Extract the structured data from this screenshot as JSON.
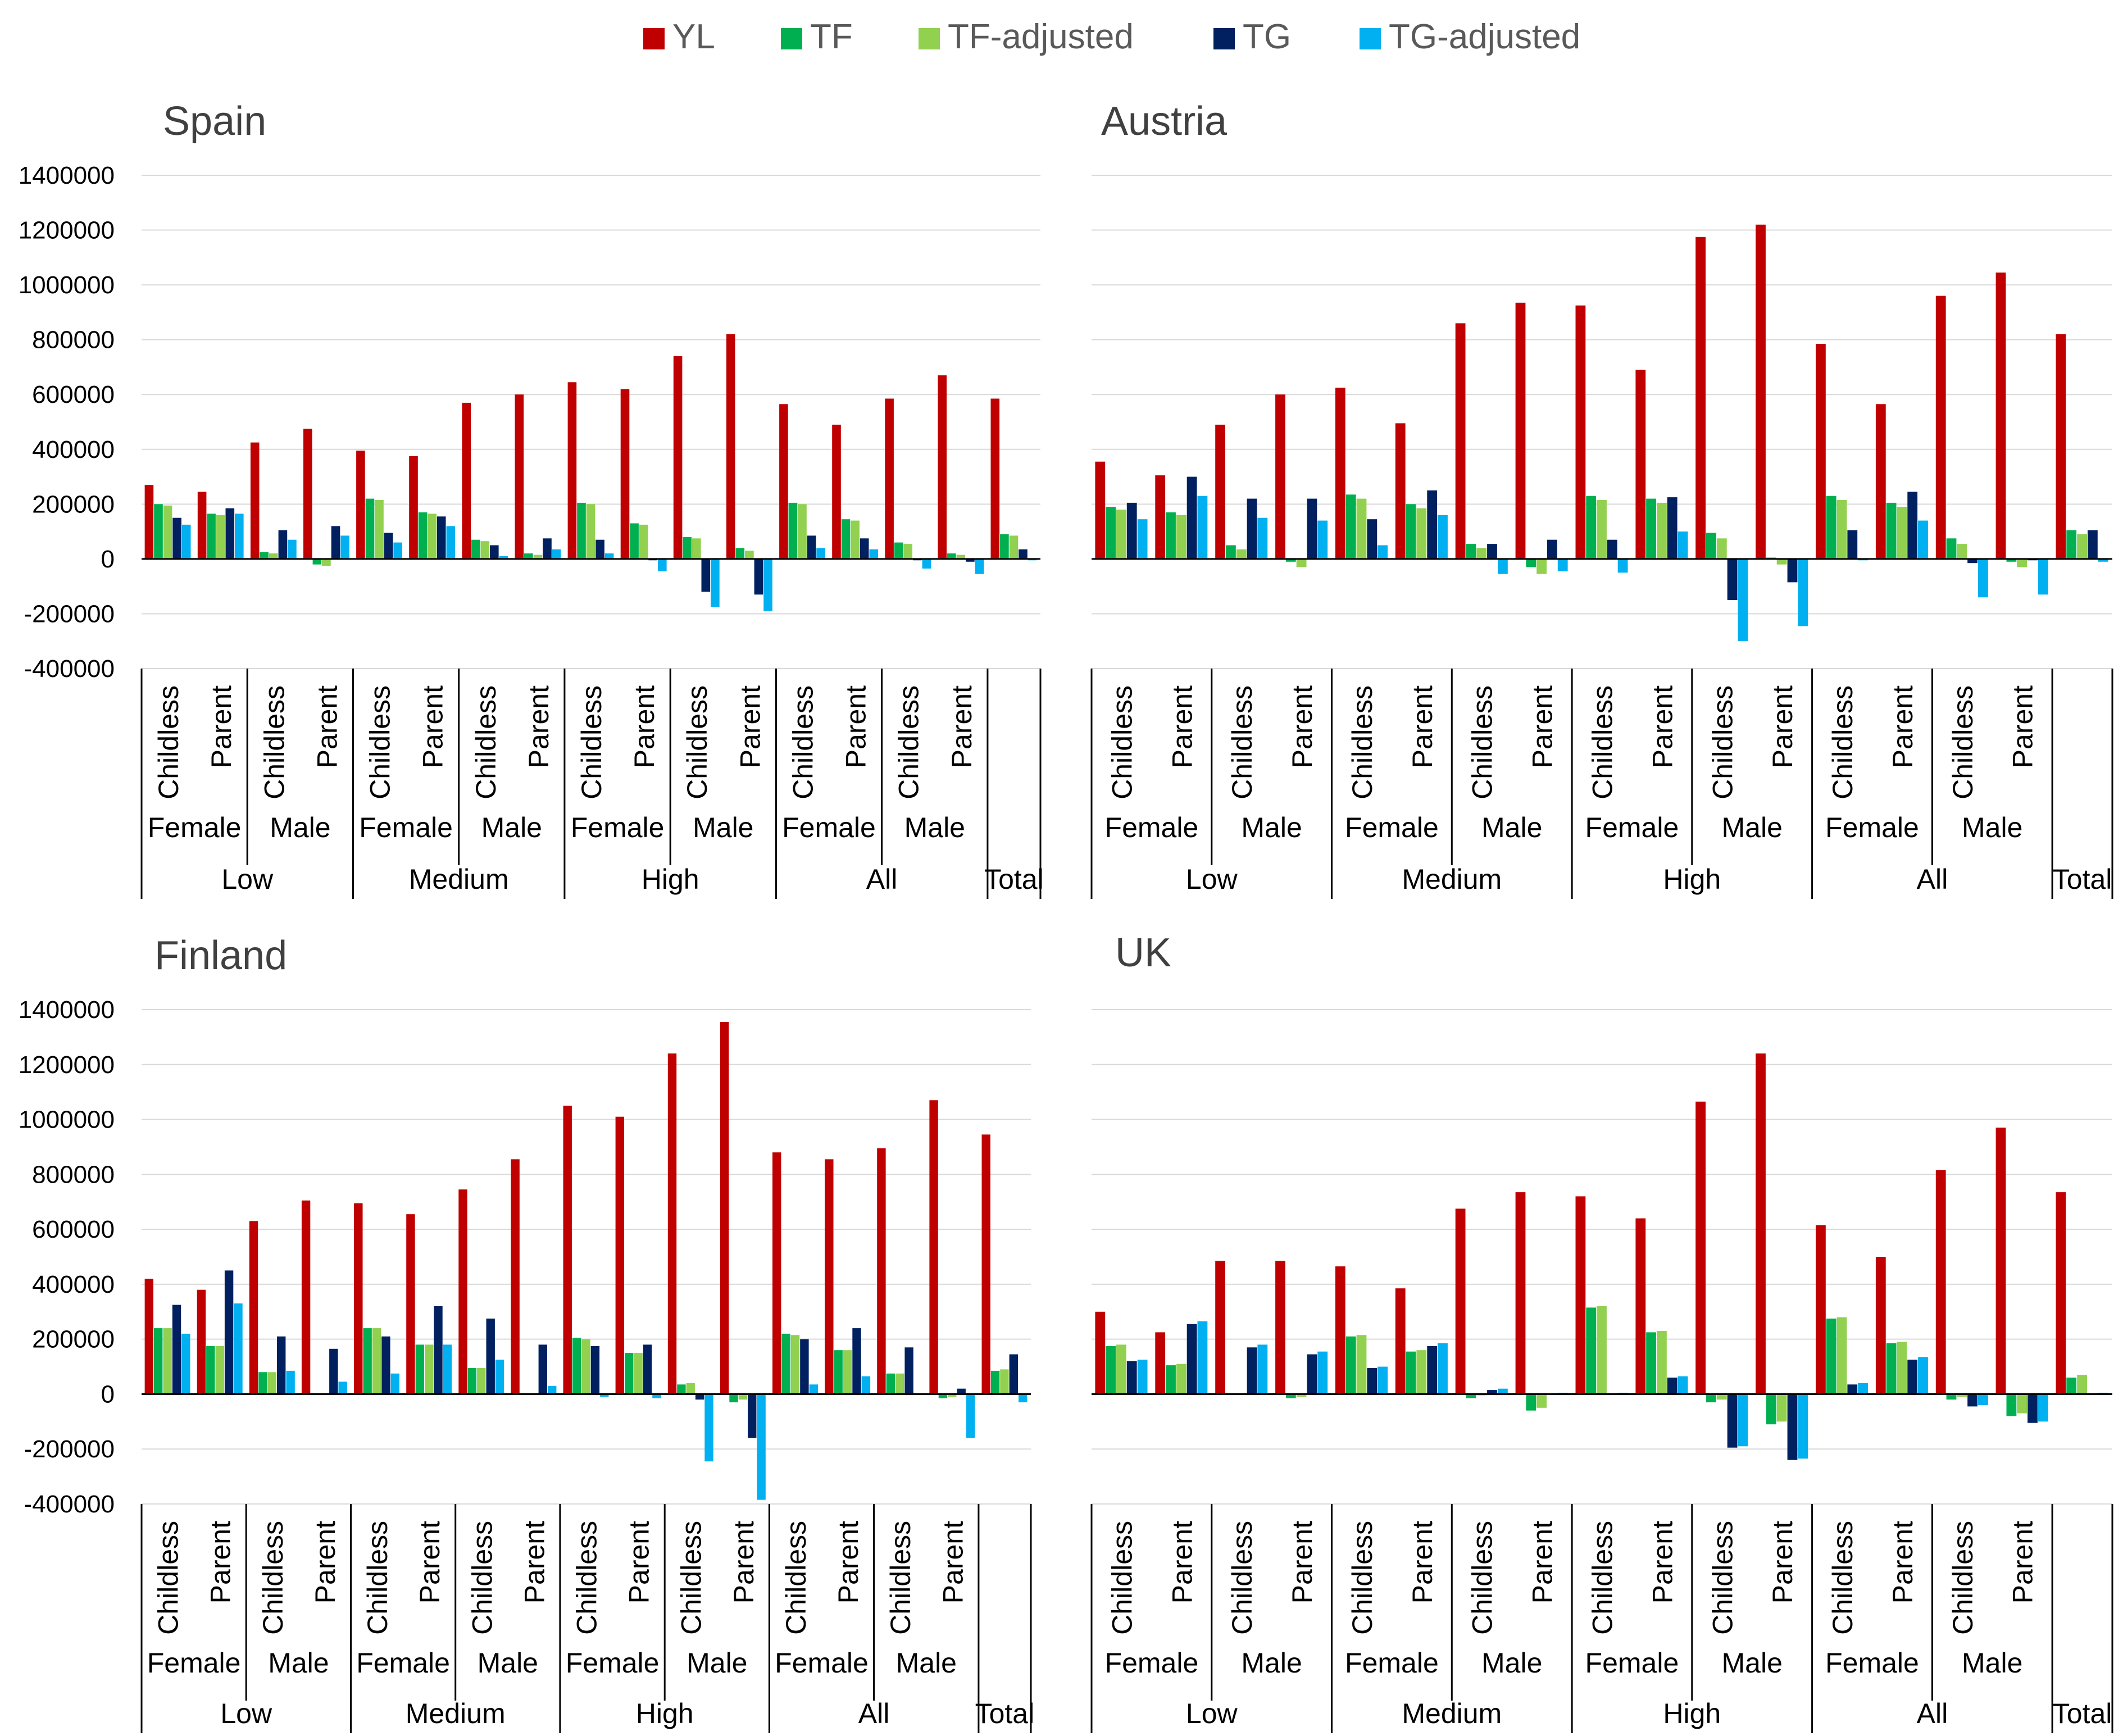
{
  "series": [
    {
      "name": "YL",
      "color": "#C00000"
    },
    {
      "name": "TF",
      "color": "#00B050"
    },
    {
      "name": "TF-adjusted",
      "color": "#92D050"
    },
    {
      "name": "TG",
      "color": "#002060"
    },
    {
      "name": "TG-adjusted",
      "color": "#00B0F0"
    }
  ],
  "chart_data": [
    {
      "type": "bar",
      "title": "Spain",
      "ylim": [
        -400000,
        1400000
      ],
      "yticks": [
        "1400000",
        "1200000",
        "1000000",
        "800000",
        "600000",
        "400000",
        "200000",
        "0",
        "-200000",
        "-400000"
      ],
      "group_level1": [
        "Low",
        "Medium",
        "High",
        "All",
        "Total"
      ],
      "group_level2": [
        "Female",
        "Male"
      ],
      "group_level3": [
        "Childless",
        "Parent"
      ],
      "categories": [
        "Low/Female/Childless",
        "Low/Female/Parent",
        "Low/Male/Childless",
        "Low/Male/Parent",
        "Medium/Female/Childless",
        "Medium/Female/Parent",
        "Medium/Male/Childless",
        "Medium/Male/Parent",
        "High/Female/Childless",
        "High/Female/Parent",
        "High/Male/Childless",
        "High/Male/Parent",
        "All/Female/Childless",
        "All/Female/Parent",
        "All/Male/Childless",
        "All/Male/Parent",
        "Total"
      ],
      "series": [
        {
          "name": "YL",
          "values": [
            270000,
            245000,
            425000,
            475000,
            395000,
            375000,
            570000,
            600000,
            645000,
            620000,
            740000,
            820000,
            565000,
            490000,
            585000,
            670000,
            585000
          ]
        },
        {
          "name": "TF",
          "values": [
            200000,
            165000,
            25000,
            -20000,
            220000,
            170000,
            70000,
            20000,
            205000,
            130000,
            80000,
            40000,
            205000,
            145000,
            60000,
            20000,
            90000
          ]
        },
        {
          "name": "TF-adjusted",
          "values": [
            195000,
            160000,
            20000,
            -25000,
            215000,
            165000,
            65000,
            15000,
            200000,
            125000,
            75000,
            30000,
            200000,
            140000,
            55000,
            15000,
            85000
          ]
        },
        {
          "name": "TG",
          "values": [
            150000,
            185000,
            105000,
            120000,
            95000,
            155000,
            50000,
            75000,
            70000,
            -5000,
            -120000,
            -130000,
            85000,
            75000,
            -5000,
            -10000,
            35000
          ]
        },
        {
          "name": "TG-adjusted",
          "values": [
            125000,
            165000,
            70000,
            85000,
            60000,
            120000,
            10000,
            35000,
            20000,
            -45000,
            -175000,
            -190000,
            40000,
            35000,
            -35000,
            -55000,
            -5000
          ]
        }
      ]
    },
    {
      "type": "bar",
      "title": "Austria",
      "ylim": [
        -400000,
        1400000
      ],
      "group_level1": [
        "Low",
        "Medium",
        "High",
        "All",
        "Total"
      ],
      "group_level2": [
        "Female",
        "Male"
      ],
      "group_level3": [
        "Childless",
        "Parent"
      ],
      "categories": [
        "Low/Female/Childless",
        "Low/Female/Parent",
        "Low/Male/Childless",
        "Low/Male/Parent",
        "Medium/Female/Childless",
        "Medium/Female/Parent",
        "Medium/Male/Childless",
        "Medium/Male/Parent",
        "High/Female/Childless",
        "High/Female/Parent",
        "High/Male/Childless",
        "High/Male/Parent",
        "All/Female/Childless",
        "All/Female/Parent",
        "All/Male/Childless",
        "All/Male/Parent",
        "Total"
      ],
      "series": [
        {
          "name": "YL",
          "values": [
            355000,
            305000,
            490000,
            600000,
            625000,
            495000,
            860000,
            935000,
            925000,
            690000,
            1175000,
            1220000,
            785000,
            565000,
            960000,
            1045000,
            820000
          ]
        },
        {
          "name": "TF",
          "values": [
            190000,
            170000,
            50000,
            -10000,
            235000,
            200000,
            55000,
            -30000,
            230000,
            220000,
            95000,
            5000,
            230000,
            205000,
            75000,
            -10000,
            105000
          ]
        },
        {
          "name": "TF-adjusted",
          "values": [
            180000,
            160000,
            35000,
            -30000,
            220000,
            185000,
            40000,
            -55000,
            215000,
            205000,
            75000,
            -20000,
            215000,
            190000,
            55000,
            -30000,
            90000
          ]
        },
        {
          "name": "TG",
          "values": [
            205000,
            300000,
            220000,
            220000,
            145000,
            250000,
            55000,
            70000,
            70000,
            225000,
            -150000,
            -85000,
            105000,
            245000,
            -15000,
            -5000,
            105000
          ]
        },
        {
          "name": "TG-adjusted",
          "values": [
            145000,
            230000,
            150000,
            140000,
            50000,
            160000,
            -55000,
            -45000,
            -50000,
            100000,
            -300000,
            -245000,
            -5000,
            140000,
            -140000,
            -130000,
            -10000
          ]
        }
      ]
    },
    {
      "type": "bar",
      "title": "Finland",
      "ylim": [
        -400000,
        1400000
      ],
      "yticks": [
        "1400000",
        "1200000",
        "1000000",
        "800000",
        "600000",
        "400000",
        "200000",
        "0",
        "-200000",
        "-400000"
      ],
      "group_level1": [
        "Low",
        "Medium",
        "High",
        "All",
        "Total"
      ],
      "group_level2": [
        "Female",
        "Male"
      ],
      "group_level3": [
        "Childless",
        "Parent"
      ],
      "categories": [
        "Low/Female/Childless",
        "Low/Female/Parent",
        "Low/Male/Childless",
        "Low/Male/Parent",
        "Medium/Female/Childless",
        "Medium/Female/Parent",
        "Medium/Male/Childless",
        "Medium/Male/Parent",
        "High/Female/Childless",
        "High/Female/Parent",
        "High/Male/Childless",
        "High/Male/Parent",
        "All/Female/Childless",
        "All/Female/Parent",
        "All/Male/Childless",
        "All/Male/Parent",
        "Total"
      ],
      "series": [
        {
          "name": "YL",
          "values": [
            420000,
            380000,
            630000,
            705000,
            695000,
            655000,
            745000,
            855000,
            1050000,
            1010000,
            1240000,
            1355000,
            880000,
            855000,
            895000,
            1070000,
            945000
          ]
        },
        {
          "name": "TF",
          "values": [
            240000,
            175000,
            80000,
            0,
            240000,
            180000,
            95000,
            0,
            205000,
            150000,
            35000,
            -30000,
            220000,
            160000,
            75000,
            -15000,
            85000
          ]
        },
        {
          "name": "TF-adjusted",
          "values": [
            240000,
            175000,
            80000,
            0,
            240000,
            180000,
            95000,
            0,
            200000,
            150000,
            40000,
            -20000,
            215000,
            160000,
            75000,
            -10000,
            90000
          ]
        },
        {
          "name": "TG",
          "values": [
            325000,
            450000,
            210000,
            165000,
            210000,
            320000,
            275000,
            180000,
            175000,
            180000,
            -20000,
            -160000,
            200000,
            240000,
            170000,
            20000,
            145000
          ]
        },
        {
          "name": "TG-adjusted",
          "values": [
            220000,
            330000,
            85000,
            45000,
            75000,
            180000,
            125000,
            30000,
            -10000,
            -15000,
            -245000,
            -385000,
            35000,
            65000,
            0,
            -160000,
            -30000
          ]
        }
      ]
    },
    {
      "type": "bar",
      "title": "UK",
      "ylim": [
        -400000,
        1400000
      ],
      "group_level1": [
        "Low",
        "Medium",
        "High",
        "All",
        "Total"
      ],
      "group_level2": [
        "Female",
        "Male"
      ],
      "group_level3": [
        "Childless",
        "Parent"
      ],
      "categories": [
        "Low/Female/Childless",
        "Low/Female/Parent",
        "Low/Male/Childless",
        "Low/Male/Parent",
        "Medium/Female/Childless",
        "Medium/Female/Parent",
        "Medium/Male/Childless",
        "Medium/Male/Parent",
        "High/Female/Childless",
        "High/Female/Parent",
        "High/Male/Childless",
        "High/Male/Parent",
        "All/Female/Childless",
        "All/Female/Parent",
        "All/Male/Childless",
        "All/Male/Parent",
        "Total"
      ],
      "series": [
        {
          "name": "YL",
          "values": [
            300000,
            225000,
            485000,
            485000,
            465000,
            385000,
            675000,
            735000,
            720000,
            640000,
            1065000,
            1240000,
            615000,
            500000,
            815000,
            970000,
            735000
          ]
        },
        {
          "name": "TF",
          "values": [
            175000,
            105000,
            0,
            -15000,
            210000,
            155000,
            -15000,
            -60000,
            315000,
            225000,
            -30000,
            -110000,
            275000,
            185000,
            -20000,
            -80000,
            60000
          ]
        },
        {
          "name": "TF-adjusted",
          "values": [
            180000,
            110000,
            0,
            -10000,
            215000,
            160000,
            -5000,
            -50000,
            320000,
            230000,
            -20000,
            -100000,
            280000,
            190000,
            -10000,
            -70000,
            70000
          ]
        },
        {
          "name": "TG",
          "values": [
            120000,
            255000,
            170000,
            145000,
            95000,
            175000,
            15000,
            0,
            0,
            60000,
            -195000,
            -240000,
            35000,
            125000,
            -45000,
            -105000,
            0
          ]
        },
        {
          "name": "TG-adjusted",
          "values": [
            125000,
            265000,
            180000,
            155000,
            100000,
            185000,
            20000,
            5000,
            5000,
            65000,
            -190000,
            -235000,
            40000,
            135000,
            -40000,
            -100000,
            5000
          ]
        }
      ]
    }
  ]
}
